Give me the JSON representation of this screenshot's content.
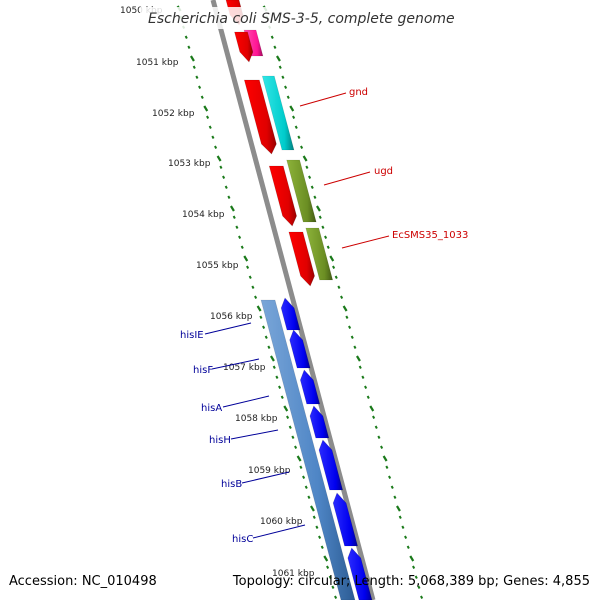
{
  "header": {
    "title": "Escherichia coli SMS-3-5, complete genome"
  },
  "footer": {
    "accession": "Accession: NC_010498",
    "summary": "Topology: circular; Length: 5,068,389 bp; Genes: 4,855"
  },
  "ruler": {
    "ticks": [
      "1050 kbp",
      "1051 kbp",
      "1052 kbp",
      "1053 kbp",
      "1054 kbp",
      "1055 kbp",
      "1056 kbp",
      "1057 kbp",
      "1058 kbp",
      "1059 kbp",
      "1060 kbp",
      "1061 kbp"
    ]
  },
  "genes": {
    "forward": [
      "gnd",
      "ugd",
      "EcSMS35_1033"
    ],
    "reverse": [
      "hisIE",
      "hisF",
      "hisA",
      "hisH",
      "hisB",
      "hisC"
    ]
  },
  "colors": {
    "backbone": "#8c8c8c",
    "forward_cds": "#ff0000",
    "reverse_cds": "#0000ff",
    "gene_blue": "#4f86c6",
    "gene_cyan": "#00cccc",
    "gene_olive": "#6b8e23",
    "gene_magenta": "#ff1493",
    "tick_green": "#1a7a1a"
  }
}
